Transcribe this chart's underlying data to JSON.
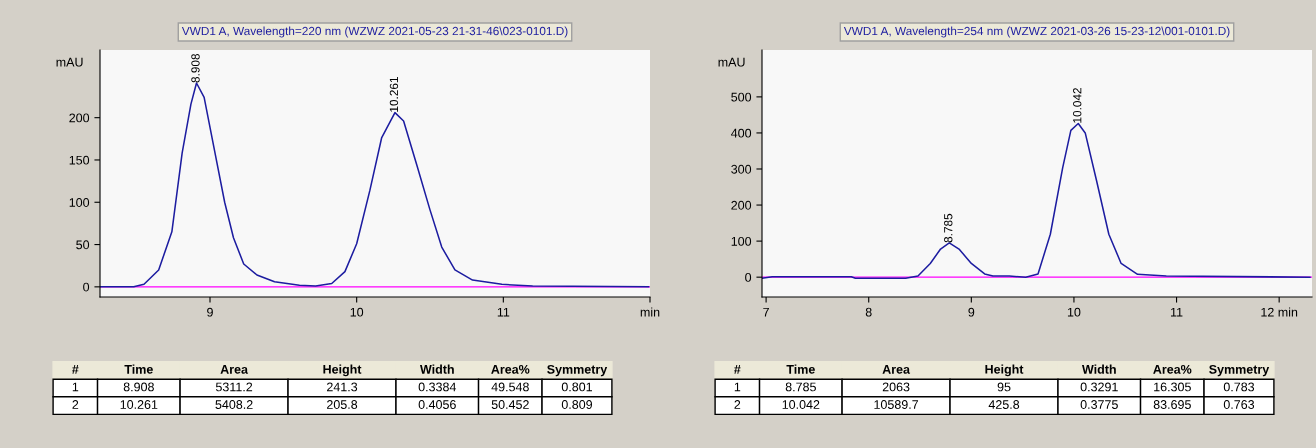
{
  "chart_data": [
    {
      "type": "line",
      "title": "VWD1 A, Wavelength=220 nm (WZWZ 2021-05-23 21-31-46\\023-0101.D)",
      "ylabel": "mAU",
      "xlim": [
        8.25,
        12.0
      ],
      "ylim": [
        -12,
        280
      ],
      "xticks": [
        9,
        10,
        11,
        {
          "value": 12,
          "label": "min"
        }
      ],
      "yticks": [
        0,
        50,
        100,
        150,
        200
      ],
      "grid": false,
      "legend": false,
      "marker": "none",
      "line_style": "solid",
      "series": [
        {
          "color": "#1c1ca0",
          "x": [
            8.25,
            8.48,
            8.55,
            8.65,
            8.74,
            8.81,
            8.87,
            8.908,
            8.96,
            9.03,
            9.1,
            9.16,
            9.23,
            9.32,
            9.44,
            9.61,
            9.72,
            9.83,
            9.92,
            10.0,
            10.09,
            10.17,
            10.261,
            10.32,
            10.41,
            10.5,
            10.58,
            10.67,
            10.79,
            10.99,
            11.2,
            11.99
          ],
          "values": [
            0,
            0,
            3,
            20,
            65,
            158,
            216,
            241,
            224,
            162,
            100,
            58,
            27,
            14,
            6,
            2,
            1,
            4,
            18,
            51,
            114,
            176,
            206,
            196,
            144,
            91,
            47,
            20,
            8,
            3,
            1,
            0
          ]
        }
      ],
      "ref_lines": [
        {
          "axis": "y",
          "value": 0,
          "color": "#ff00ff"
        }
      ],
      "annotations": [
        {
          "text": "8.908",
          "x": 8.908,
          "y": 241
        },
        {
          "text": "10.261",
          "x": 10.261,
          "y": 206
        },
        "#",
        "Time",
        "Area",
        "Height",
        "Width",
        "Area%",
        "Symmetry",
        "1",
        "8.908",
        "5311.2",
        "241.3",
        "0.3384",
        "49.548",
        "0.801",
        "2",
        "10.261",
        "5408.2",
        "205.8",
        "0.4056",
        "50.452",
        "0.809"
      ]
    },
    {
      "type": "line",
      "title": "VWD1 A, Wavelength=254 nm (WZWZ 2021-03-26 15-23-12\\001-0101.D)",
      "ylabel": "mAU",
      "xlim": [
        6.96,
        12.32
      ],
      "ylim": [
        -55,
        630
      ],
      "xticks": [
        7,
        8,
        9,
        10,
        11,
        {
          "value": 12,
          "label": "12 min"
        }
      ],
      "yticks": [
        0,
        100,
        200,
        300,
        400,
        500
      ],
      "grid": false,
      "legend": false,
      "marker": "none",
      "line_style": "solid",
      "series": [
        {
          "color": "#1c1ca0",
          "x": [
            6.96,
            7.06,
            7.83,
            7.87,
            8.36,
            8.48,
            8.6,
            8.7,
            8.785,
            8.88,
            9.0,
            9.13,
            9.21,
            9.37,
            9.53,
            9.65,
            9.77,
            9.89,
            9.97,
            10.042,
            10.11,
            10.22,
            10.34,
            10.46,
            10.62,
            10.9,
            12.3
          ],
          "values": [
            -3,
            1,
            1,
            -3,
            -3,
            3,
            38,
            78,
            95,
            78,
            38,
            9,
            3,
            3,
            0,
            9,
            119,
            303,
            407,
            426,
            400,
            268,
            119,
            38,
            8,
            3,
            0
          ]
        }
      ],
      "ref_lines": [
        {
          "axis": "y",
          "value": 0,
          "color": "#ff00ff"
        }
      ],
      "annotations": [
        {
          "text": "8.785",
          "x": 8.785,
          "y": 95
        },
        {
          "text": "10.042",
          "x": 10.042,
          "y": 426
        },
        "#",
        "Time",
        "Area",
        "Height",
        "Width",
        "Area%",
        "Symmetry",
        "1",
        "8.785",
        "2063",
        "95",
        "0.3291",
        "16.305",
        "0.783",
        "2",
        "10.042",
        "10589.7",
        "425.8",
        "0.3775",
        "83.695",
        "0.763"
      ]
    }
  ]
}
